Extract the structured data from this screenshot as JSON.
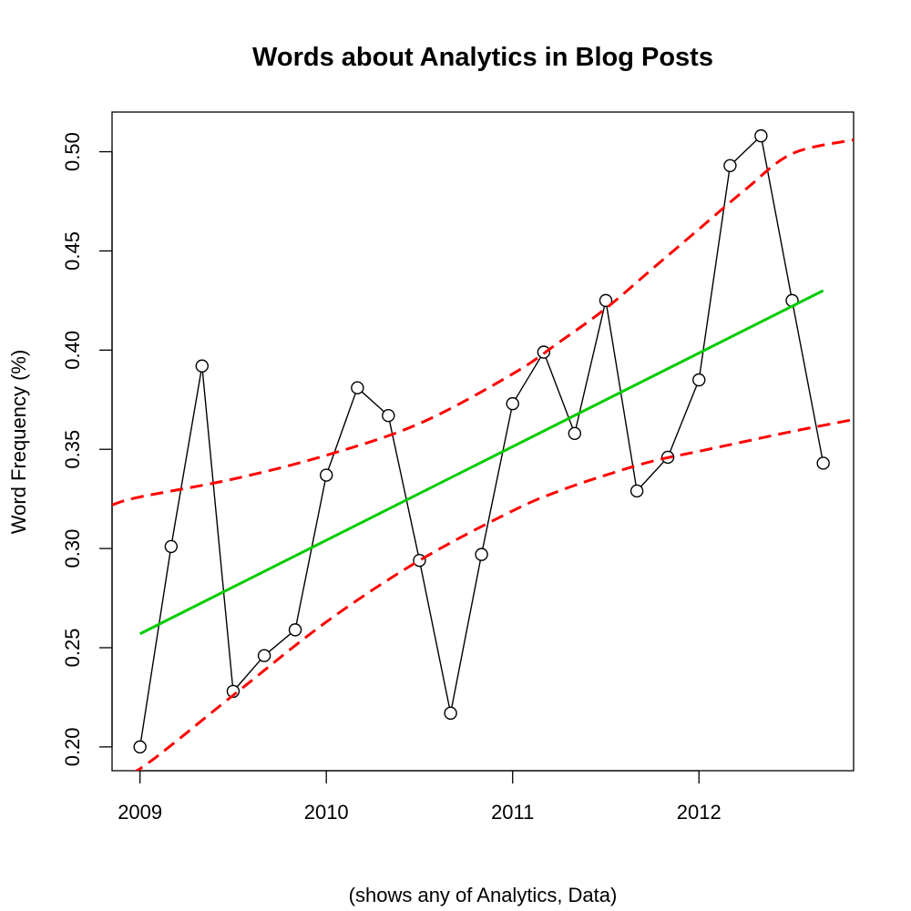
{
  "chart_data": {
    "type": "line",
    "title": "Words about Analytics in Blog Posts",
    "xlabel": "(shows any of Analytics, Data)",
    "ylabel": "Word Frequency (%)",
    "xlim": [
      2008.85,
      2012.83
    ],
    "ylim": [
      0.188,
      0.52
    ],
    "x_ticks": [
      2009,
      2010,
      2011,
      2012
    ],
    "x_tick_labels": [
      "2009",
      "2010",
      "2011",
      "2012"
    ],
    "y_ticks": [
      0.2,
      0.25,
      0.3,
      0.35,
      0.4,
      0.45,
      0.5
    ],
    "y_tick_labels": [
      "0.20",
      "0.25",
      "0.30",
      "0.35",
      "0.40",
      "0.45",
      "0.50"
    ],
    "grid": false,
    "series": [
      {
        "style": "line-with-open-circles",
        "color": "#000000",
        "x": [
          2009.0,
          2009.167,
          2009.333,
          2009.5,
          2009.667,
          2009.833,
          2010.0,
          2010.167,
          2010.333,
          2010.5,
          2010.667,
          2010.833,
          2011.0,
          2011.167,
          2011.333,
          2011.5,
          2011.667,
          2011.833,
          2012.0,
          2012.167,
          2012.333,
          2012.5,
          2012.667
        ],
        "y": [
          0.2,
          0.301,
          0.392,
          0.228,
          0.246,
          0.259,
          0.337,
          0.381,
          0.367,
          0.294,
          0.217,
          0.297,
          0.373,
          0.399,
          0.358,
          0.425,
          0.329,
          0.346,
          0.385,
          0.493,
          0.508,
          0.425,
          0.343
        ]
      },
      {
        "style": "solid-line",
        "color": "#00cc00",
        "x": [
          2009.0,
          2012.667
        ],
        "y": [
          0.257,
          0.43
        ]
      },
      {
        "style": "dashed-line",
        "color": "#ff0000",
        "x": [
          2008.85,
          2009.0,
          2009.5,
          2010.0,
          2010.5,
          2011.0,
          2011.25,
          2011.5,
          2011.75,
          2012.0,
          2012.25,
          2012.5,
          2012.83
        ],
        "y": [
          0.322,
          0.326,
          0.335,
          0.347,
          0.363,
          0.388,
          0.404,
          0.421,
          0.441,
          0.461,
          0.481,
          0.499,
          0.506
        ]
      },
      {
        "style": "dashed-line",
        "color": "#ff0000",
        "x": [
          2008.85,
          2009.0,
          2009.5,
          2010.0,
          2010.5,
          2011.0,
          2011.25,
          2011.5,
          2011.75,
          2012.0,
          2012.25,
          2012.5,
          2012.83
        ],
        "y": [
          0.186,
          0.189,
          0.226,
          0.263,
          0.294,
          0.319,
          0.329,
          0.337,
          0.344,
          0.349,
          0.354,
          0.359,
          0.365
        ]
      }
    ]
  }
}
